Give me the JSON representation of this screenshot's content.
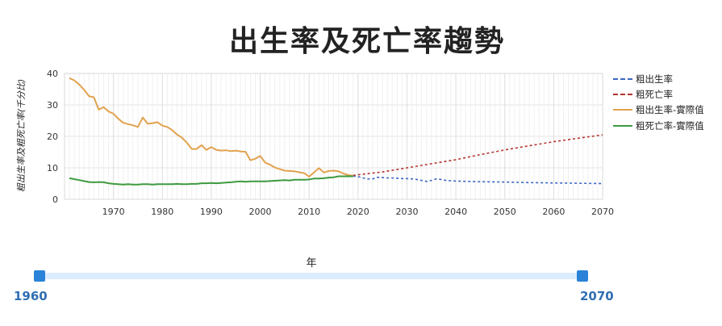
{
  "chart_data": {
    "type": "line",
    "title": "出生率及死亡率趨勢",
    "ylabel": "粗出生率及粗死亡率(千分比)",
    "xlabel": "",
    "xlim": [
      1960,
      2070
    ],
    "ylim": [
      0,
      40
    ],
    "x_ticks": [
      1970,
      1980,
      1990,
      2000,
      2010,
      2020,
      2030,
      2040,
      2050,
      2060,
      2070
    ],
    "y_ticks": [
      0,
      10,
      20,
      30,
      40
    ],
    "grid": true,
    "legend_position": "right",
    "series": [
      {
        "name": "粗出生率",
        "color": "#3b66c4",
        "style": "dashed",
        "points": [
          [
            2019,
            7.4
          ],
          [
            2020,
            7.2
          ],
          [
            2021,
            6.8
          ],
          [
            2022,
            6.5
          ],
          [
            2023,
            6.5
          ],
          [
            2024,
            7.0
          ],
          [
            2025,
            6.9
          ],
          [
            2026,
            6.8
          ],
          [
            2027,
            6.8
          ],
          [
            2028,
            6.7
          ],
          [
            2029,
            6.6
          ],
          [
            2030,
            6.6
          ],
          [
            2031,
            6.5
          ],
          [
            2032,
            6.3
          ],
          [
            2033,
            6.0
          ],
          [
            2034,
            5.7
          ],
          [
            2035,
            6.0
          ],
          [
            2036,
            6.5
          ],
          [
            2037,
            6.3
          ],
          [
            2038,
            6.0
          ],
          [
            2040,
            5.8
          ],
          [
            2045,
            5.6
          ],
          [
            2050,
            5.5
          ],
          [
            2055,
            5.3
          ],
          [
            2060,
            5.2
          ],
          [
            2065,
            5.1
          ],
          [
            2070,
            5.0
          ]
        ]
      },
      {
        "name": "粗死亡率",
        "color": "#b5342f",
        "style": "dashed",
        "points": [
          [
            2019,
            7.6
          ],
          [
            2020,
            7.8
          ],
          [
            2025,
            8.7
          ],
          [
            2030,
            10.0
          ],
          [
            2035,
            11.3
          ],
          [
            2040,
            12.6
          ],
          [
            2045,
            14.2
          ],
          [
            2050,
            15.7
          ],
          [
            2055,
            17.0
          ],
          [
            2060,
            18.3
          ],
          [
            2065,
            19.4
          ],
          [
            2070,
            20.5
          ]
        ]
      },
      {
        "name": "粗出生率-實際值",
        "color": "#e2a24e",
        "style": "solid",
        "points": [
          [
            1961,
            38.5
          ],
          [
            1962,
            37.8
          ],
          [
            1963,
            36.5
          ],
          [
            1964,
            34.8
          ],
          [
            1965,
            32.8
          ],
          [
            1966,
            32.4
          ],
          [
            1967,
            28.5
          ],
          [
            1968,
            29.3
          ],
          [
            1969,
            27.9
          ],
          [
            1970,
            27.2
          ],
          [
            1971,
            25.6
          ],
          [
            1972,
            24.3
          ],
          [
            1973,
            23.9
          ],
          [
            1974,
            23.5
          ],
          [
            1975,
            23.0
          ],
          [
            1976,
            26.0
          ],
          [
            1977,
            24.0
          ],
          [
            1978,
            24.2
          ],
          [
            1979,
            24.5
          ],
          [
            1980,
            23.4
          ],
          [
            1981,
            23.0
          ],
          [
            1982,
            22.0
          ],
          [
            1983,
            20.6
          ],
          [
            1984,
            19.6
          ],
          [
            1985,
            18.0
          ],
          [
            1986,
            16.0
          ],
          [
            1987,
            16.0
          ],
          [
            1988,
            17.2
          ],
          [
            1989,
            15.7
          ],
          [
            1990,
            16.6
          ],
          [
            1991,
            15.7
          ],
          [
            1992,
            15.5
          ],
          [
            1993,
            15.6
          ],
          [
            1994,
            15.3
          ],
          [
            1995,
            15.5
          ],
          [
            1996,
            15.2
          ],
          [
            1997,
            15.1
          ],
          [
            1998,
            12.4
          ],
          [
            1999,
            12.9
          ],
          [
            2000,
            13.8
          ],
          [
            2001,
            11.7
          ],
          [
            2002,
            11.0
          ],
          [
            2003,
            10.1
          ],
          [
            2004,
            9.6
          ],
          [
            2005,
            9.1
          ],
          [
            2006,
            9.0
          ],
          [
            2007,
            8.9
          ],
          [
            2008,
            8.6
          ],
          [
            2009,
            8.3
          ],
          [
            2010,
            7.2
          ],
          [
            2011,
            8.5
          ],
          [
            2012,
            9.9
          ],
          [
            2013,
            8.5
          ],
          [
            2014,
            9.0
          ],
          [
            2015,
            9.1
          ],
          [
            2016,
            8.9
          ],
          [
            2017,
            8.2
          ],
          [
            2018,
            7.7
          ],
          [
            2019,
            7.5
          ]
        ]
      },
      {
        "name": "粗死亡率-實際值",
        "color": "#3e9a3e",
        "style": "solid",
        "points": [
          [
            1961,
            6.7
          ],
          [
            1962,
            6.4
          ],
          [
            1963,
            6.1
          ],
          [
            1964,
            5.8
          ],
          [
            1965,
            5.5
          ],
          [
            1966,
            5.4
          ],
          [
            1967,
            5.5
          ],
          [
            1968,
            5.4
          ],
          [
            1969,
            5.1
          ],
          [
            1970,
            4.9
          ],
          [
            1971,
            4.8
          ],
          [
            1972,
            4.7
          ],
          [
            1973,
            4.8
          ],
          [
            1974,
            4.7
          ],
          [
            1975,
            4.7
          ],
          [
            1976,
            4.8
          ],
          [
            1977,
            4.8
          ],
          [
            1978,
            4.7
          ],
          [
            1979,
            4.8
          ],
          [
            1980,
            4.8
          ],
          [
            1981,
            4.8
          ],
          [
            1982,
            4.8
          ],
          [
            1983,
            4.9
          ],
          [
            1984,
            4.8
          ],
          [
            1985,
            4.8
          ],
          [
            1986,
            4.9
          ],
          [
            1987,
            4.9
          ],
          [
            1988,
            5.1
          ],
          [
            1989,
            5.1
          ],
          [
            1990,
            5.2
          ],
          [
            1991,
            5.1
          ],
          [
            1992,
            5.2
          ],
          [
            1993,
            5.3
          ],
          [
            1994,
            5.4
          ],
          [
            1995,
            5.6
          ],
          [
            1996,
            5.7
          ],
          [
            1997,
            5.6
          ],
          [
            1998,
            5.7
          ],
          [
            1999,
            5.7
          ],
          [
            2000,
            5.7
          ],
          [
            2001,
            5.7
          ],
          [
            2002,
            5.8
          ],
          [
            2003,
            5.9
          ],
          [
            2004,
            6.0
          ],
          [
            2005,
            6.1
          ],
          [
            2006,
            6.0
          ],
          [
            2007,
            6.2
          ],
          [
            2008,
            6.2
          ],
          [
            2009,
            6.2
          ],
          [
            2010,
            6.3
          ],
          [
            2011,
            6.6
          ],
          [
            2012,
            6.6
          ],
          [
            2013,
            6.7
          ],
          [
            2014,
            6.9
          ],
          [
            2015,
            7.0
          ],
          [
            2016,
            7.3
          ],
          [
            2017,
            7.3
          ],
          [
            2018,
            7.3
          ],
          [
            2019,
            7.3
          ]
        ]
      }
    ]
  },
  "slider": {
    "title": "年",
    "min_label": "1960",
    "max_label": "2070",
    "range": [
      1960,
      2070
    ]
  }
}
